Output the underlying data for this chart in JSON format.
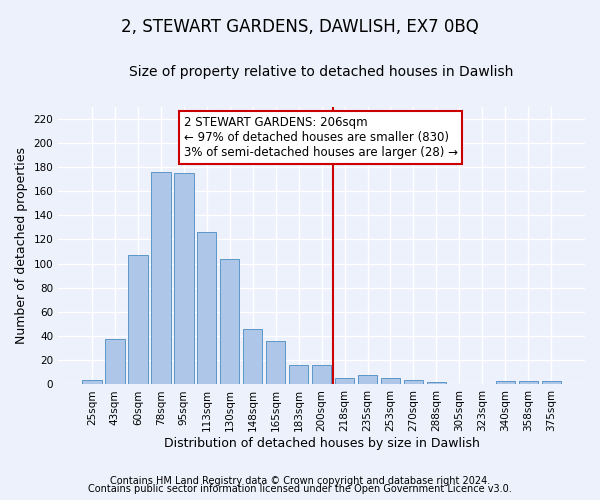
{
  "title": "2, STEWART GARDENS, DAWLISH, EX7 0BQ",
  "subtitle": "Size of property relative to detached houses in Dawlish",
  "xlabel": "Distribution of detached houses by size in Dawlish",
  "ylabel": "Number of detached properties",
  "categories": [
    "25sqm",
    "43sqm",
    "60sqm",
    "78sqm",
    "95sqm",
    "113sqm",
    "130sqm",
    "148sqm",
    "165sqm",
    "183sqm",
    "200sqm",
    "218sqm",
    "235sqm",
    "253sqm",
    "270sqm",
    "288sqm",
    "305sqm",
    "323sqm",
    "340sqm",
    "358sqm",
    "375sqm"
  ],
  "values": [
    4,
    38,
    107,
    176,
    175,
    126,
    104,
    46,
    36,
    16,
    16,
    5,
    8,
    5,
    4,
    2,
    0,
    0,
    3,
    3,
    3
  ],
  "bar_color": "#aec6e8",
  "bar_edge_color": "#5a96c8",
  "annotation_box_color": "#ffffff",
  "annotation_box_edge": "#cc0000",
  "vertical_line_color": "#cc0000",
  "annotation_text_line1": "2 STEWART GARDENS: 206sqm",
  "annotation_text_line2": "← 97% of detached houses are smaller (830)",
  "annotation_text_line3": "3% of semi-detached houses are larger (28) →",
  "ylim": [
    0,
    230
  ],
  "yticks": [
    0,
    20,
    40,
    60,
    80,
    100,
    120,
    140,
    160,
    180,
    200,
    220
  ],
  "footnote1": "Contains HM Land Registry data © Crown copyright and database right 2024.",
  "footnote2": "Contains public sector information licensed under the Open Government Licence v3.0.",
  "background_color": "#edf1fb",
  "grid_color": "#ffffff",
  "title_fontsize": 12,
  "subtitle_fontsize": 10,
  "xlabel_fontsize": 9,
  "ylabel_fontsize": 9,
  "tick_fontsize": 7.5,
  "annotation_fontsize": 8.5,
  "footnote_fontsize": 7
}
